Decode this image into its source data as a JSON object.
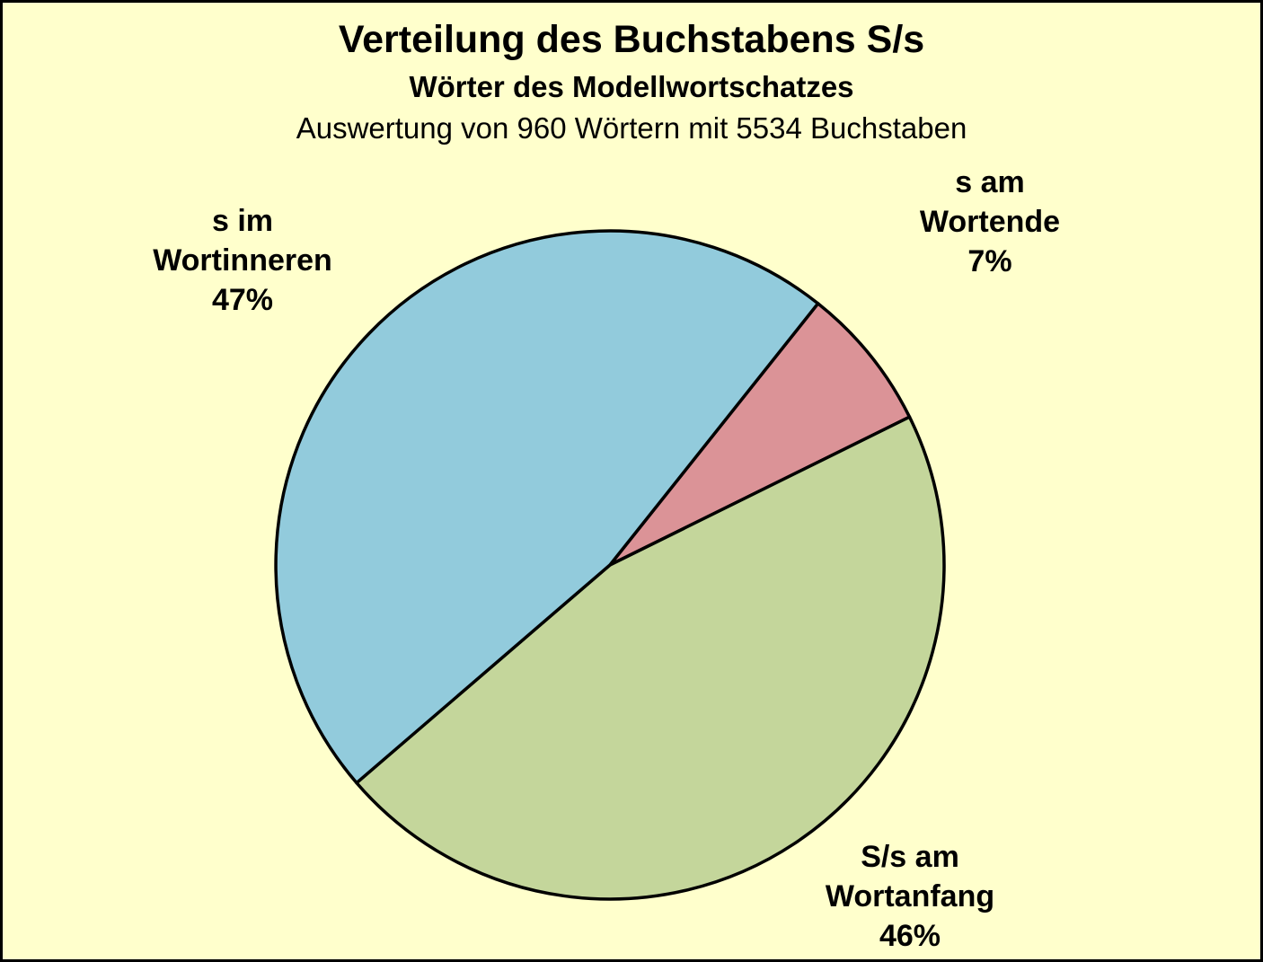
{
  "page": {
    "background_color": "#FFFFCC",
    "frame_color": "#000000"
  },
  "chart_data": {
    "type": "pie",
    "title": "Verteilung des Buchstabens S/s",
    "subtitle": "Wörter des Modellwortschatzes",
    "annotation": "Auswertung von 960 Wörtern mit 5534 Buchstaben",
    "words_analyzed": 960,
    "letters_analyzed": 5534,
    "start_angle_deg": 51.5,
    "direction": "clockwise",
    "stroke_color": "#000000",
    "legend": "none",
    "slices": [
      {
        "label": "s am Wortende",
        "line1": "s am",
        "line2": "Wortende",
        "pct_label": "7%",
        "value": 7,
        "color": "#DB9397"
      },
      {
        "label": "S/s am Wortanfang",
        "line1": "S/s am",
        "line2": "Wortanfang",
        "pct_label": "46%",
        "value": 46,
        "color": "#C4D69B"
      },
      {
        "label": "s im Wortinneren",
        "line1": "s im",
        "line2": "Wortinneren",
        "pct_label": "47%",
        "value": 47,
        "color": "#92CBDC"
      }
    ]
  }
}
